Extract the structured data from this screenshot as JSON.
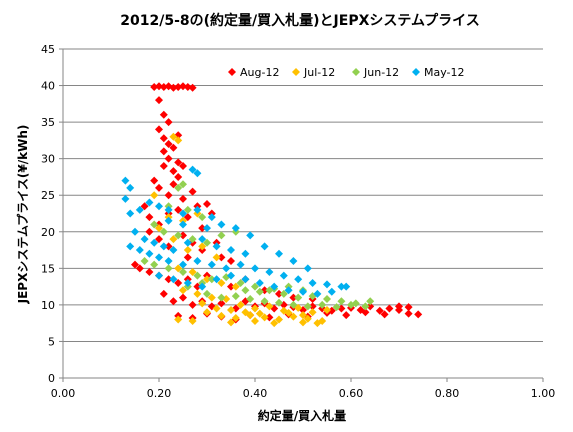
{
  "chart_data": {
    "type": "scatter",
    "title": "2012/5-8の(約定量/買入札量)とJEPXシステムプライス",
    "xlabel": "約定量/買入札量",
    "ylabel": "JEPXシステムプライス(¥/kWh)",
    "xlim": [
      0,
      1
    ],
    "ylim": [
      0,
      45
    ],
    "x_ticks": [
      "0.00",
      "0.20",
      "0.40",
      "0.60",
      "0.80",
      "1.00"
    ],
    "y_ticks": [
      "0",
      "5",
      "10",
      "15",
      "20",
      "25",
      "30",
      "35",
      "40",
      "45"
    ],
    "grid": "horizontal",
    "legend_position": "top-right",
    "series": [
      {
        "name": "Aug-12",
        "color": "#ff0000",
        "points": [
          [
            0.19,
            39.8
          ],
          [
            0.2,
            39.9
          ],
          [
            0.21,
            39.8
          ],
          [
            0.22,
            39.9
          ],
          [
            0.23,
            39.7
          ],
          [
            0.24,
            39.8
          ],
          [
            0.25,
            39.9
          ],
          [
            0.26,
            39.8
          ],
          [
            0.27,
            39.7
          ],
          [
            0.2,
            38.0
          ],
          [
            0.21,
            36.0
          ],
          [
            0.22,
            35.0
          ],
          [
            0.2,
            34.0
          ],
          [
            0.21,
            32.8
          ],
          [
            0.22,
            32.0
          ],
          [
            0.23,
            31.5
          ],
          [
            0.24,
            33.2
          ],
          [
            0.22,
            30.0
          ],
          [
            0.21,
            29.0
          ],
          [
            0.23,
            28.3
          ],
          [
            0.25,
            29.0
          ],
          [
            0.19,
            27.0
          ],
          [
            0.24,
            27.5
          ],
          [
            0.2,
            26.0
          ],
          [
            0.22,
            25.0
          ],
          [
            0.25,
            24.5
          ],
          [
            0.27,
            25.5
          ],
          [
            0.17,
            23.5
          ],
          [
            0.18,
            22.0
          ],
          [
            0.2,
            21.0
          ],
          [
            0.22,
            22.5
          ],
          [
            0.24,
            23.0
          ],
          [
            0.26,
            22.0
          ],
          [
            0.28,
            23.5
          ],
          [
            0.3,
            23.8
          ],
          [
            0.31,
            22.5
          ],
          [
            0.18,
            20.0
          ],
          [
            0.2,
            19.0
          ],
          [
            0.22,
            18.0
          ],
          [
            0.25,
            19.5
          ],
          [
            0.27,
            18.5
          ],
          [
            0.29,
            17.5
          ],
          [
            0.32,
            18.5
          ],
          [
            0.33,
            16.5
          ],
          [
            0.35,
            16.0
          ],
          [
            0.15,
            15.5
          ],
          [
            0.16,
            15.0
          ],
          [
            0.18,
            14.5
          ],
          [
            0.2,
            14.0
          ],
          [
            0.22,
            13.5
          ],
          [
            0.24,
            13.0
          ],
          [
            0.26,
            13.5
          ],
          [
            0.28,
            12.5
          ],
          [
            0.3,
            14.0
          ],
          [
            0.21,
            11.5
          ],
          [
            0.23,
            10.5
          ],
          [
            0.25,
            11.0
          ],
          [
            0.27,
            10.0
          ],
          [
            0.29,
            10.5
          ],
          [
            0.31,
            9.8
          ],
          [
            0.33,
            10.2
          ],
          [
            0.36,
            9.5
          ],
          [
            0.38,
            10.5
          ],
          [
            0.4,
            9.8
          ],
          [
            0.42,
            10.2
          ],
          [
            0.44,
            9.5
          ],
          [
            0.46,
            10.0
          ],
          [
            0.48,
            9.7
          ],
          [
            0.5,
            9.3
          ],
          [
            0.52,
            9.8
          ],
          [
            0.54,
            9.5
          ],
          [
            0.56,
            9.2
          ],
          [
            0.58,
            9.5
          ],
          [
            0.6,
            9.6
          ],
          [
            0.62,
            9.3
          ],
          [
            0.64,
            9.8
          ],
          [
            0.66,
            9.2
          ],
          [
            0.68,
            9.5
          ],
          [
            0.7,
            9.3
          ],
          [
            0.72,
            8.8
          ],
          [
            0.74,
            8.7
          ],
          [
            0.24,
            8.5
          ],
          [
            0.27,
            8.2
          ],
          [
            0.3,
            8.8
          ],
          [
            0.33,
            8.4
          ],
          [
            0.36,
            8.0
          ],
          [
            0.39,
            8.6
          ],
          [
            0.43,
            8.3
          ],
          [
            0.47,
            8.7
          ],
          [
            0.51,
            8.4
          ],
          [
            0.55,
            8.9
          ],
          [
            0.59,
            8.6
          ],
          [
            0.63,
            9.0
          ],
          [
            0.67,
            8.7
          ],
          [
            0.7,
            9.8
          ],
          [
            0.72,
            9.7
          ],
          [
            0.35,
            12.5
          ],
          [
            0.38,
            13.5
          ],
          [
            0.42,
            12.0
          ],
          [
            0.45,
            11.5
          ],
          [
            0.48,
            11.0
          ],
          [
            0.52,
            10.8
          ],
          [
            0.26,
            16.5
          ],
          [
            0.29,
            20.5
          ],
          [
            0.23,
            26.5
          ],
          [
            0.24,
            29.5
          ],
          [
            0.21,
            31.0
          ]
        ]
      },
      {
        "name": "Jul-12",
        "color": "#ffc000",
        "points": [
          [
            0.19,
            25.0
          ],
          [
            0.23,
            33.0
          ],
          [
            0.24,
            32.5
          ],
          [
            0.22,
            22.0
          ],
          [
            0.25,
            21.5
          ],
          [
            0.28,
            22.5
          ],
          [
            0.2,
            20.5
          ],
          [
            0.23,
            19.0
          ],
          [
            0.26,
            17.5
          ],
          [
            0.29,
            18.0
          ],
          [
            0.32,
            16.5
          ],
          [
            0.24,
            15.0
          ],
          [
            0.27,
            14.5
          ],
          [
            0.3,
            13.5
          ],
          [
            0.33,
            13.0
          ],
          [
            0.36,
            12.5
          ],
          [
            0.25,
            12.0
          ],
          [
            0.28,
            11.5
          ],
          [
            0.31,
            11.0
          ],
          [
            0.34,
            10.8
          ],
          [
            0.37,
            10.0
          ],
          [
            0.4,
            9.5
          ],
          [
            0.43,
            9.8
          ],
          [
            0.46,
            9.2
          ],
          [
            0.49,
            9.6
          ],
          [
            0.52,
            9.0
          ],
          [
            0.55,
            9.3
          ],
          [
            0.3,
            9.0
          ],
          [
            0.33,
            8.5
          ],
          [
            0.36,
            8.2
          ],
          [
            0.39,
            8.6
          ],
          [
            0.42,
            8.3
          ],
          [
            0.45,
            8.0
          ],
          [
            0.48,
            8.4
          ],
          [
            0.51,
            8.1
          ],
          [
            0.54,
            7.8
          ],
          [
            0.24,
            8.0
          ],
          [
            0.27,
            7.8
          ],
          [
            0.35,
            7.6
          ],
          [
            0.4,
            7.8
          ],
          [
            0.44,
            7.5
          ],
          [
            0.5,
            7.6
          ],
          [
            0.53,
            7.5
          ],
          [
            0.38,
            9.0
          ],
          [
            0.41,
            8.8
          ],
          [
            0.47,
            8.9
          ],
          [
            0.5,
            8.6
          ],
          [
            0.29,
            10.2
          ],
          [
            0.32,
            9.5
          ],
          [
            0.35,
            9.3
          ]
        ]
      },
      {
        "name": "Jun-12",
        "color": "#92d050",
        "points": [
          [
            0.24,
            26.0
          ],
          [
            0.25,
            26.5
          ],
          [
            0.22,
            23.5
          ],
          [
            0.26,
            23.0
          ],
          [
            0.29,
            22.0
          ],
          [
            0.19,
            21.0
          ],
          [
            0.21,
            20.0
          ],
          [
            0.24,
            19.5
          ],
          [
            0.27,
            19.0
          ],
          [
            0.3,
            18.5
          ],
          [
            0.33,
            19.5
          ],
          [
            0.36,
            20.0
          ],
          [
            0.17,
            16.0
          ],
          [
            0.19,
            15.5
          ],
          [
            0.22,
            15.0
          ],
          [
            0.25,
            14.5
          ],
          [
            0.28,
            14.0
          ],
          [
            0.31,
            13.5
          ],
          [
            0.34,
            13.8
          ],
          [
            0.37,
            13.0
          ],
          [
            0.4,
            12.5
          ],
          [
            0.43,
            12.0
          ],
          [
            0.46,
            11.5
          ],
          [
            0.49,
            11.0
          ],
          [
            0.52,
            11.2
          ],
          [
            0.55,
            10.8
          ],
          [
            0.58,
            10.5
          ],
          [
            0.61,
            10.2
          ],
          [
            0.64,
            10.5
          ],
          [
            0.3,
            11.5
          ],
          [
            0.33,
            11.0
          ],
          [
            0.36,
            11.2
          ],
          [
            0.39,
            10.8
          ],
          [
            0.42,
            10.5
          ],
          [
            0.45,
            10.3
          ],
          [
            0.48,
            10.0
          ],
          [
            0.51,
            9.8
          ],
          [
            0.54,
            10.0
          ],
          [
            0.57,
            9.7
          ],
          [
            0.6,
            10.0
          ],
          [
            0.63,
            9.8
          ],
          [
            0.38,
            12.0
          ],
          [
            0.41,
            11.8
          ],
          [
            0.44,
            12.2
          ],
          [
            0.47,
            12.5
          ],
          [
            0.5,
            12.0
          ],
          [
            0.26,
            12.5
          ],
          [
            0.29,
            13.0
          ]
        ]
      },
      {
        "name": "May-12",
        "color": "#00b0f0",
        "points": [
          [
            0.13,
            27.0
          ],
          [
            0.14,
            26.0
          ],
          [
            0.13,
            24.5
          ],
          [
            0.27,
            28.5
          ],
          [
            0.28,
            28.0
          ],
          [
            0.14,
            22.5
          ],
          [
            0.16,
            23.0
          ],
          [
            0.18,
            24.0
          ],
          [
            0.2,
            23.5
          ],
          [
            0.22,
            23.0
          ],
          [
            0.25,
            22.5
          ],
          [
            0.28,
            23.0
          ],
          [
            0.31,
            22.0
          ],
          [
            0.15,
            20.0
          ],
          [
            0.17,
            19.0
          ],
          [
            0.19,
            18.5
          ],
          [
            0.21,
            18.0
          ],
          [
            0.23,
            17.5
          ],
          [
            0.26,
            18.5
          ],
          [
            0.29,
            19.0
          ],
          [
            0.32,
            18.0
          ],
          [
            0.35,
            17.5
          ],
          [
            0.38,
            17.0
          ],
          [
            0.14,
            18.0
          ],
          [
            0.16,
            17.5
          ],
          [
            0.18,
            17.0
          ],
          [
            0.2,
            16.5
          ],
          [
            0.22,
            16.0
          ],
          [
            0.25,
            15.5
          ],
          [
            0.28,
            16.0
          ],
          [
            0.31,
            15.5
          ],
          [
            0.34,
            15.0
          ],
          [
            0.37,
            15.5
          ],
          [
            0.4,
            15.0
          ],
          [
            0.43,
            14.5
          ],
          [
            0.46,
            14.0
          ],
          [
            0.49,
            13.5
          ],
          [
            0.52,
            13.0
          ],
          [
            0.55,
            12.8
          ],
          [
            0.58,
            12.5
          ],
          [
            0.2,
            14.0
          ],
          [
            0.23,
            13.5
          ],
          [
            0.26,
            13.0
          ],
          [
            0.29,
            12.5
          ],
          [
            0.32,
            13.5
          ],
          [
            0.35,
            14.0
          ],
          [
            0.38,
            13.5
          ],
          [
            0.41,
            13.0
          ],
          [
            0.44,
            12.5
          ],
          [
            0.47,
            12.0
          ],
          [
            0.5,
            11.8
          ],
          [
            0.53,
            11.5
          ],
          [
            0.56,
            11.8
          ],
          [
            0.59,
            12.5
          ],
          [
            0.3,
            20.5
          ],
          [
            0.33,
            21.0
          ],
          [
            0.36,
            20.5
          ],
          [
            0.39,
            19.5
          ],
          [
            0.42,
            18.0
          ],
          [
            0.45,
            17.0
          ],
          [
            0.48,
            16.0
          ],
          [
            0.51,
            15.0
          ],
          [
            0.25,
            21.0
          ],
          [
            0.22,
            21.5
          ]
        ]
      }
    ]
  }
}
